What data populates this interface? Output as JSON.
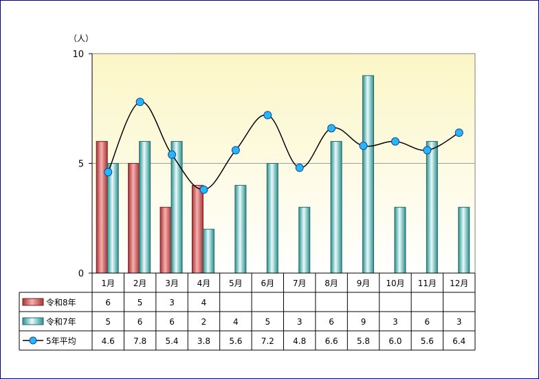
{
  "chart_data": {
    "type": "bar",
    "unit_label": "（人）",
    "categories": [
      "1月",
      "2月",
      "3月",
      "4月",
      "5月",
      "6月",
      "7月",
      "8月",
      "9月",
      "10月",
      "11月",
      "12月"
    ],
    "ylim": [
      0,
      10
    ],
    "yticks": [
      0,
      5,
      10
    ],
    "grid": true,
    "series": [
      {
        "name": "令和8年",
        "kind": "bar",
        "color": "#c0504d",
        "values": [
          6,
          5,
          3,
          4,
          null,
          null,
          null,
          null,
          null,
          null,
          null,
          null
        ],
        "labels": [
          "6",
          "5",
          "3",
          "4",
          "",
          "",
          "",
          "",
          "",
          "",
          "",
          ""
        ]
      },
      {
        "name": "令和7年",
        "kind": "bar",
        "color": "#4bacac",
        "values": [
          5,
          6,
          6,
          2,
          4,
          5,
          3,
          6,
          9,
          3,
          6,
          3
        ],
        "labels": [
          "5",
          "6",
          "6",
          "2",
          "4",
          "5",
          "3",
          "6",
          "9",
          "3",
          "6",
          "3"
        ]
      },
      {
        "name": "5年平均",
        "kind": "line",
        "color": "#1e90ff",
        "values": [
          4.6,
          7.8,
          5.4,
          3.8,
          5.6,
          7.2,
          4.8,
          6.6,
          5.8,
          6.0,
          5.6,
          6.4
        ],
        "labels": [
          "4.6",
          "7.8",
          "5.4",
          "3.8",
          "5.6",
          "7.2",
          "4.8",
          "6.6",
          "5.8",
          "6.0",
          "5.6",
          "6.4"
        ]
      }
    ]
  }
}
